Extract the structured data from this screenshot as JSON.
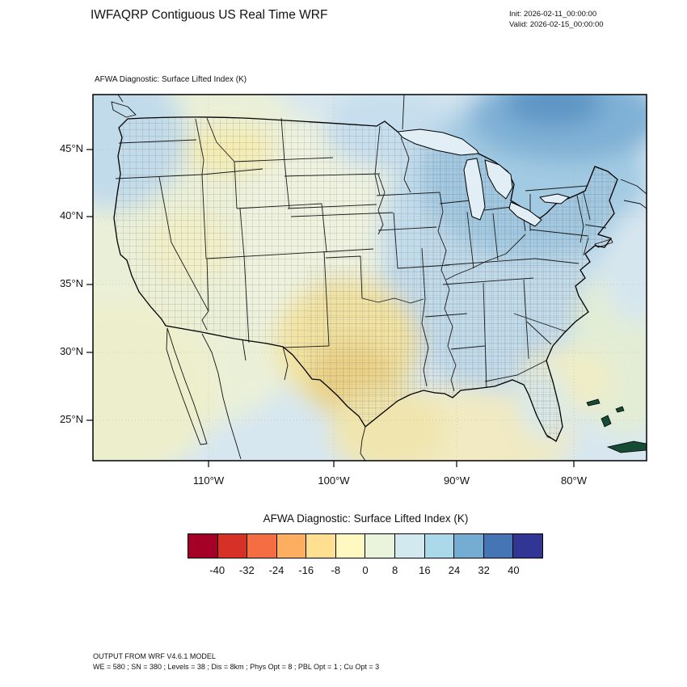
{
  "header": {
    "title": "IWFAQRP Contiguous US Real Time WRF",
    "init": "Init: 2026-02-11_00:00:00",
    "valid": "Valid: 2026-02-15_00:00:00"
  },
  "map": {
    "subtitle": "AFWA Diagnostic: Surface Lifted Index   (K)",
    "axis": {
      "lat_labels": [
        "45°N",
        "40°N",
        "35°N",
        "30°N",
        "25°N"
      ],
      "lon_labels": [
        "110°W",
        "100°W",
        "90°W",
        "80°W"
      ]
    }
  },
  "colorbar": {
    "title": "AFWA Diagnostic: Surface Lifted Index  (K)",
    "tick_labels": [
      "-40",
      "-32",
      "-24",
      "-16",
      "-8",
      "0",
      "8",
      "16",
      "24",
      "32",
      "40"
    ],
    "colors": [
      "#a50026",
      "#d73027",
      "#f46d43",
      "#fdae61",
      "#fee090",
      "#fff8c0",
      "#eaf4dc",
      "#d2e9f0",
      "#abd9e9",
      "#74add1",
      "#4575b4",
      "#313695"
    ]
  },
  "footer": {
    "line1": "OUTPUT FROM WRF V4.6.1 MODEL",
    "line2": "WE = 580 ; SN = 380 ; Levels = 38 ; Dis = 8km ; Phys Opt = 8 ; PBL Opt = 1 ; Cu Opt = 3"
  },
  "chart_data": {
    "type": "heatmap",
    "title": "AFWA Diagnostic: Surface Lifted Index (K)",
    "units": "K",
    "model_title": "IWFAQRP Contiguous US Real Time WRF",
    "init_time": "2026-02-11_00:00:00",
    "valid_time": "2026-02-15_00:00:00",
    "x_axis": {
      "label": "longitude",
      "ticks": [
        "110°W",
        "100°W",
        "90°W",
        "80°W"
      ]
    },
    "y_axis": {
      "label": "latitude",
      "ticks": [
        "45°N",
        "40°N",
        "35°N",
        "30°N",
        "25°N"
      ]
    },
    "colorbar": {
      "tick_values": [
        -40,
        -32,
        -24,
        -16,
        -8,
        0,
        8,
        16,
        24,
        32,
        40
      ],
      "colors": [
        "#a50026",
        "#d73027",
        "#f46d43",
        "#fdae61",
        "#fee090",
        "#fff8c0",
        "#eaf4dc",
        "#d2e9f0",
        "#abd9e9",
        "#74add1",
        "#4575b4",
        "#313695"
      ],
      "orientation": "horizontal"
    },
    "field_regions": [
      {
        "region": "far northeast / eastern Canada corner",
        "approx_value_K": "24 to 32"
      },
      {
        "region": "Northeast US, Great Lakes, New England",
        "approx_value_K": "16 to 24"
      },
      {
        "region": "Eastern US from Midwest to Southeast",
        "approx_value_K": "8 to 16"
      },
      {
        "region": "Great Plains and western US",
        "approx_value_K": "0 to 8"
      },
      {
        "region": "Montana and Nevada/Utah patches",
        "approx_value_K": "-8 to 0"
      },
      {
        "region": "Central and southern Texas",
        "approx_value_K": "-8 to 0"
      },
      {
        "region": "Gulf of Mexico and southeast coastal waters",
        "approx_value_K": "-8 to 8"
      }
    ],
    "model_config": {
      "WE": 580,
      "SN": 380,
      "Levels": 38,
      "Dis": "8km",
      "Phys_Opt": 8,
      "PBL_Opt": 1,
      "Cu_Opt": 3
    }
  }
}
